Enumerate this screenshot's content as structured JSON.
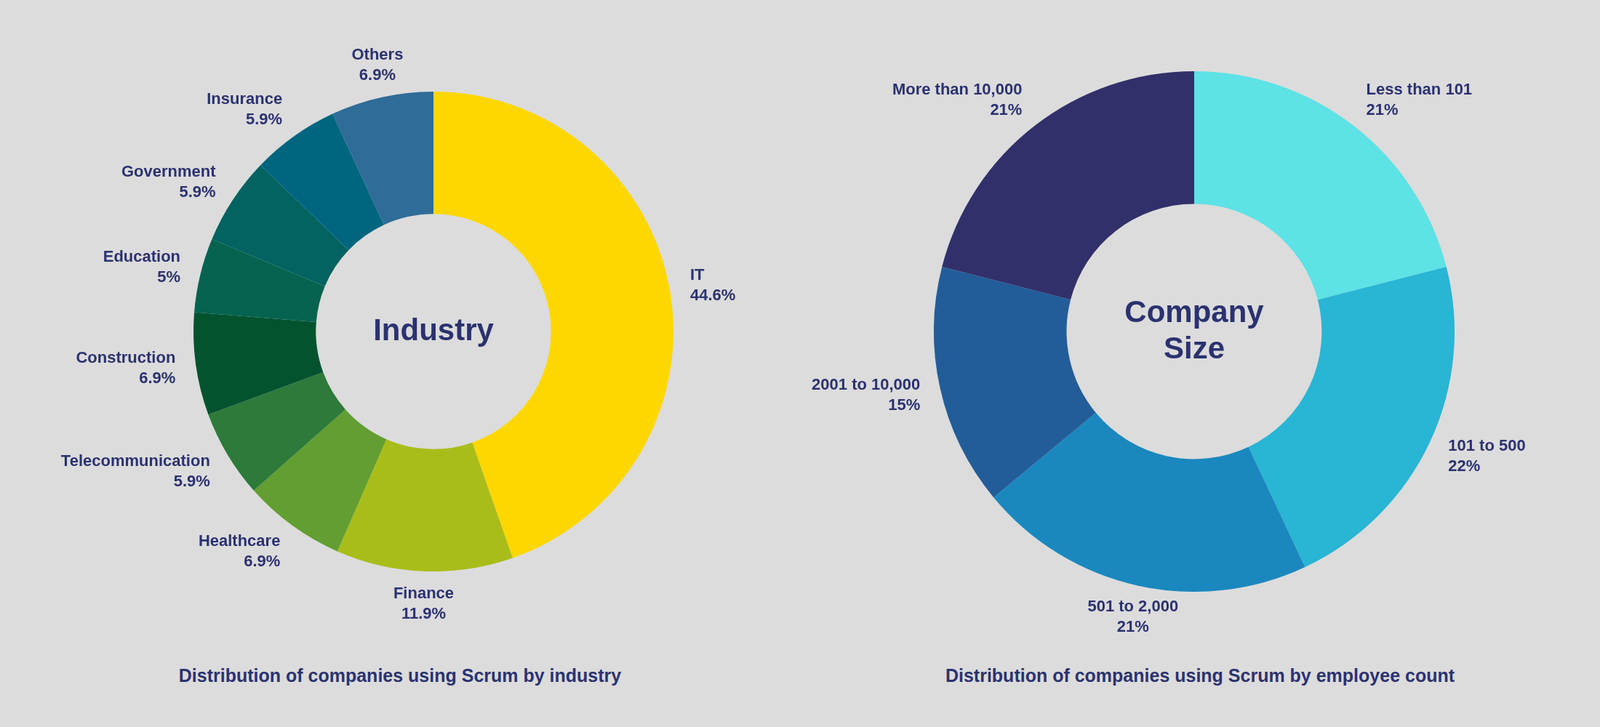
{
  "chart_data": [
    {
      "type": "doughnut",
      "title": "Distribution of companies using Scrum by industry",
      "annotation": "Industry",
      "categories": [
        "IT",
        "Finance",
        "Healthcare",
        "Telecommunication",
        "Construction",
        "Education",
        "Government",
        "Insurance",
        "Others"
      ],
      "values": [
        44.6,
        11.9,
        6.9,
        5.9,
        6.9,
        5,
        5.9,
        5.9,
        6.9
      ],
      "value_labels": [
        "44.6%",
        "11.9%",
        "6.9%",
        "5.9%",
        "6.9%",
        "5%",
        "5.9%",
        "5.9%",
        "6.9%"
      ],
      "colors": [
        "#ffd700",
        "#a9bd1a",
        "#629e31",
        "#2d7a3a",
        "#04532f",
        "#05634f",
        "#036360",
        "#006680",
        "#2f6c98"
      ],
      "data_labels": true
    },
    {
      "type": "doughnut",
      "title": "Distribution of companies using Scrum by employee count",
      "annotation": "Company Size",
      "categories": [
        "Less than 101",
        "101 to 500",
        "501 to 2,000",
        "2001 to 10,000",
        "More than 10,000"
      ],
      "values": [
        21,
        22,
        21,
        15,
        21
      ],
      "value_labels": [
        "21%",
        "22%",
        "21%",
        "15%",
        "21%"
      ],
      "colors": [
        "#5de2e6",
        "#29b5d4",
        "#1a88be",
        "#225d99",
        "#31306a"
      ],
      "data_labels": true
    }
  ]
}
